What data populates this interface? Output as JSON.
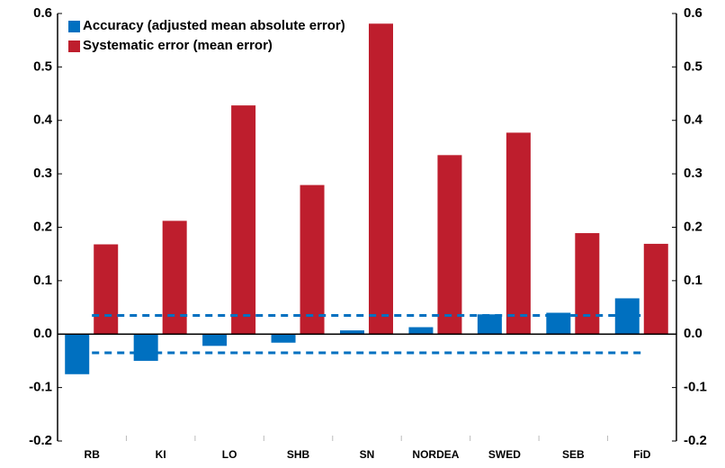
{
  "chart_data": {
    "type": "bar",
    "categories": [
      "RB",
      "KI",
      "LO",
      "SHB",
      "SN",
      "NORDEA",
      "SWED",
      "SEB",
      "FiD"
    ],
    "series": [
      {
        "name": "Accuracy (adjusted mean absolute error)",
        "color": "#0070c0",
        "values": [
          -0.075,
          -0.05,
          -0.022,
          -0.016,
          0.007,
          0.013,
          0.037,
          0.04,
          0.067
        ]
      },
      {
        "name": "Systematic error (mean error)",
        "color": "#be1e2d",
        "values": [
          0.168,
          0.212,
          0.428,
          0.279,
          0.581,
          0.335,
          0.377,
          0.189,
          0.169
        ]
      }
    ],
    "reference_lines": [
      0.035,
      -0.035
    ],
    "reference_line_color": "#0070c0",
    "ylim": [
      -0.2,
      0.6
    ],
    "yticks": [
      0.6,
      0.5,
      0.4,
      0.3,
      0.2,
      0.1,
      {
        "value": 0,
        "label": "0.0"
      },
      -0.1,
      -0.2
    ],
    "y2lim": [
      -0.2,
      0.6
    ],
    "y2ticks": [
      0.6,
      0.5,
      0.4,
      0.3,
      0.2,
      0.1,
      {
        "value": 0,
        "label": "0.0"
      },
      -0.1,
      -0.2
    ],
    "legend": "top-left"
  }
}
